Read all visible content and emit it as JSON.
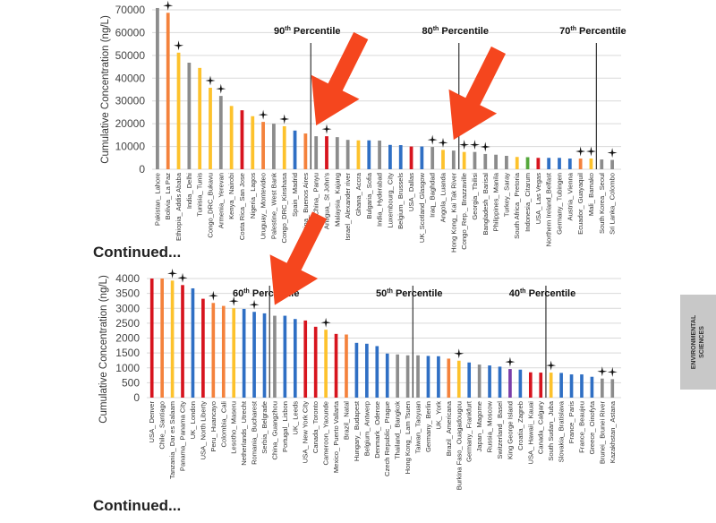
{
  "colors": {
    "gray": "#8c8c8c",
    "orange": "#f4823c",
    "yellow": "#fdc22c",
    "red": "#d7141e",
    "blue": "#2f6fc4",
    "green": "#55a83c",
    "purple": "#7a3ca8",
    "arrow": "#f5461e",
    "grid": "#d9d9d9",
    "side_tab": "#c8c8c8"
  },
  "labels": {
    "continued_1": "Continued...",
    "continued_2": "Continued...",
    "side_tab_line1": "ENVIRONMENTAL",
    "side_tab_line2": "SCIENCES"
  },
  "chart_data": [
    {
      "type": "bar",
      "title": "",
      "xlabel": "",
      "ylabel": "Cumulative Concentration (ng/L)",
      "ylim": [
        0,
        70000
      ],
      "yticks": [
        0,
        10000,
        20000,
        30000,
        40000,
        50000,
        60000,
        70000
      ],
      "grid": true,
      "categories": [
        "Pakistan_ Lahore",
        "Bolivia_ La Paz",
        "Ethiopia_ Addis Ababa",
        "India_ Delhi",
        "Tunisia_ Tunis",
        "Congo_DRC_Bukavu",
        "Armenia_ Yerevan",
        "Kenya_ Nairobi",
        "Costa Rica_ San Jose",
        "Nigeria_ Lagos",
        "Uruguay_ Montevideo",
        "Palestine_ West Bank",
        "Congo_DRC_Kinshasa",
        "Spain_ Madrid",
        "Argentina_ Buenos Aires",
        "China_ Panyu",
        "Antigua_ St John's",
        "Malaysia_ Kajang",
        "Israel_ Alexander river",
        "Ghana_ Accra",
        "Bulgaria_ Sofia",
        "India_ Hyderabad",
        "Luxembourg_ City",
        "Belgium_ Brussels",
        "USA_ Dallas",
        "UK_Scotland_Glasgow",
        "Iraq_ Baghdad",
        "Angola_ Luanda",
        "Hong Kong_ Kai Tak River",
        "Congo_Rep._ Brazzaville",
        "Georgia_ Tbilisi",
        "Bangladesh_ Barisal",
        "Philippines_ Manila",
        "Turkey_ Saray",
        "South Africa_ Pretoria",
        "Indonesia_ Citarum",
        "USA_ Las Vegas",
        "Northern Ireland_Belfast",
        "Germany_ Tubingen",
        "Austria_ Vienna",
        "Ecuador_ Guayaquil",
        "Mali_ Bamako",
        "South Korea_ Seoul",
        "Sri Lanka_ Colombo"
      ],
      "values": [
        70800,
        68700,
        51200,
        46800,
        44500,
        35800,
        32200,
        27800,
        25900,
        23300,
        20800,
        20000,
        18900,
        17000,
        15700,
        14500,
        14500,
        14100,
        12900,
        12700,
        12700,
        12600,
        10700,
        10600,
        10000,
        10000,
        9800,
        8500,
        8200,
        7600,
        7600,
        6700,
        6400,
        5900,
        5400,
        5300,
        5000,
        5000,
        5000,
        4700,
        4700,
        4700,
        4300,
        4100
      ],
      "colors": [
        "gray",
        "orange",
        "yellow",
        "gray",
        "yellow",
        "yellow",
        "gray",
        "yellow",
        "red",
        "yellow",
        "orange",
        "gray",
        "yellow",
        "blue",
        "orange",
        "gray",
        "red",
        "gray",
        "gray",
        "yellow",
        "blue",
        "gray",
        "blue",
        "blue",
        "red",
        "blue",
        "gray",
        "yellow",
        "gray",
        "yellow",
        "gray",
        "gray",
        "gray",
        "gray",
        "yellow",
        "green",
        "red",
        "blue",
        "blue",
        "blue",
        "orange",
        "yellow",
        "gray",
        "gray"
      ],
      "marked": [
        1,
        2,
        5,
        6,
        10,
        12,
        16,
        26,
        27,
        29,
        30,
        31,
        40,
        41,
        43
      ],
      "percentile_lines": [
        {
          "label": "90",
          "suffix": "th",
          "text": "Percentile",
          "after_index": 14
        },
        {
          "label": "80",
          "suffix": "th",
          "text": "Percentile",
          "after_index": 28
        },
        {
          "label": "70",
          "suffix": "th",
          "text": "Percentile",
          "after_index": 41
        }
      ],
      "arrows": [
        {
          "points_to_index": 15
        },
        {
          "points_to_index": 28
        }
      ]
    },
    {
      "type": "bar",
      "title": "",
      "xlabel": "",
      "ylabel": "Cumulative Concentration (ng/L)",
      "ylim": [
        0,
        4000
      ],
      "yticks": [
        0,
        500,
        1000,
        1500,
        2000,
        2500,
        3000,
        3500,
        4000
      ],
      "grid": true,
      "categories": [
        "USA_ Denver",
        "Chile_ Santiago",
        "Tanzania_ Dar es Salaam",
        "Panama_ Panama City",
        "UK_ London",
        "USA_ North Liberty",
        "Peru_ Huancayo",
        "Colombia_ Cali",
        "Lesotho_ Maseru",
        "Netherlands_ Utrecht",
        "Romania_ Bucharest",
        "Serbia_ Belgrade",
        "China_ Guangzhou",
        "Portugal_ Lisbon",
        "UK_ Leeds",
        "USA_ New York City",
        "Canada_ Toronto",
        "Cameroon_ Yaounde",
        "Mexico_ Puerto Vallarta",
        "Brazil_ Natal",
        "Hungary_ Budapest",
        "Belgium_ Antwerp",
        "Denmark_ Odense",
        "Czech Republic_ Prague",
        "Thailand_ Bangkok",
        "Hong Kong_ Lam Tsuen",
        "Taiwan_ Taoyuan",
        "Germany_ Berlin",
        "UK_ York",
        "Brazil_ Americana",
        "Burkina Faso_ Ouagadougou",
        "Germany_ Frankfurt",
        "Japan_ Magome",
        "Russia_ Moscow",
        "Switzerland_ Basel",
        "King George Island",
        "Croatia_ Zagreb",
        "USA_ Hawaii_ Kauai",
        "Canada_ Calgary",
        "South Sudan_ Juba",
        "Slovakia_ Bratislava",
        "France_ Paris",
        "France_ Beaujeu",
        "Greece_ Oinofyta",
        "Brunei_ Brunei River",
        "Kazakhstan_ Astana"
      ],
      "values": [
        4000,
        4000,
        3930,
        3780,
        3670,
        3320,
        3180,
        3080,
        3000,
        2980,
        2880,
        2830,
        2750,
        2750,
        2640,
        2590,
        2380,
        2280,
        2140,
        2120,
        1840,
        1810,
        1730,
        1480,
        1450,
        1420,
        1420,
        1400,
        1390,
        1310,
        1240,
        1180,
        1110,
        1080,
        1040,
        960,
        940,
        850,
        840,
        840,
        830,
        780,
        780,
        700,
        640,
        620
      ],
      "colors": [
        "red",
        "orange",
        "yellow",
        "red",
        "blue",
        "red",
        "orange",
        "orange",
        "yellow",
        "blue",
        "blue",
        "blue",
        "gray",
        "blue",
        "blue",
        "red",
        "red",
        "yellow",
        "red",
        "orange",
        "blue",
        "blue",
        "blue",
        "blue",
        "gray",
        "gray",
        "gray",
        "blue",
        "blue",
        "orange",
        "yellow",
        "blue",
        "gray",
        "blue",
        "blue",
        "purple",
        "blue",
        "red",
        "red",
        "yellow",
        "blue",
        "blue",
        "blue",
        "blue",
        "gray",
        "gray"
      ],
      "marked": [
        2,
        3,
        6,
        8,
        10,
        17,
        30,
        35,
        39,
        44,
        45
      ],
      "percentile_lines": [
        {
          "label": "60",
          "suffix": "th",
          "text": "Percentile",
          "after_index": 11
        },
        {
          "label": "50",
          "suffix": "th",
          "text": "Percentile",
          "after_index": 25
        },
        {
          "label": "40",
          "suffix": "th",
          "text": "Percentile",
          "after_index": 38
        }
      ],
      "arrows": [
        {
          "points_to_index": 12
        }
      ]
    }
  ]
}
